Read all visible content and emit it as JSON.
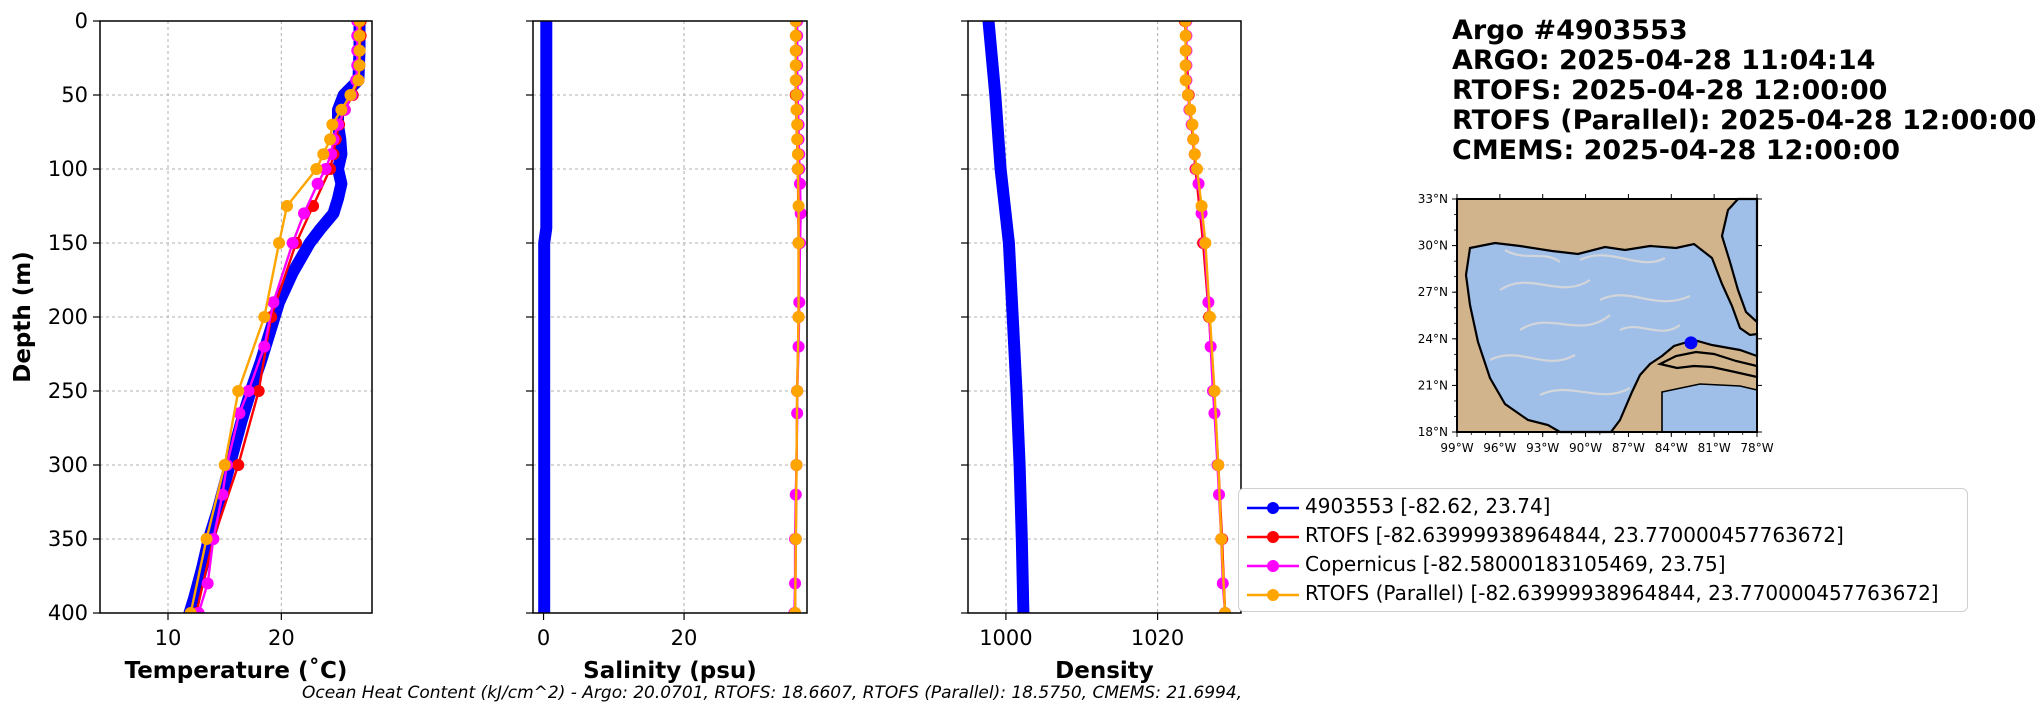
{
  "title": {
    "lines": [
      "Argo #4903553",
      "ARGO:  2025-04-28 11:04:14",
      "RTOFS: 2025-04-28 12:00:00",
      "RTOFS (Parallel): 2025-04-28 12:00:00",
      "CMEMS: 2025-04-28 12:00:00"
    ]
  },
  "ohc_text": "Ocean Heat Content (kJ/cm^2) - Argo: 20.0701,  RTOFS: 18.6607,  RTOFS (Parallel): 18.5750,  CMEMS: 21.6994,",
  "colors": {
    "argo": "#0000ff",
    "rtofs": "#ff0000",
    "copernicus": "#ff00ff",
    "rtofs_parallel": "#ffa500",
    "land": "#d2b48c",
    "ocean": "#9fbfe8",
    "grid": "#b0b0b0"
  },
  "legend": [
    {
      "key": "argo",
      "label": "4903553 [-82.62, 23.74]"
    },
    {
      "key": "rtofs",
      "label": "RTOFS [-82.63999938964844, 23.770000457763672]"
    },
    {
      "key": "copernicus",
      "label": "Copernicus [-82.58000183105469, 23.75]"
    },
    {
      "key": "rtofs_parallel",
      "label": "RTOFS (Parallel) [-82.63999938964844, 23.770000457763672]"
    }
  ],
  "chart_data": [
    {
      "type": "line",
      "xlabel": "Temperature (˚C)",
      "ylabel": "Depth (m)",
      "xlim": [
        4,
        28
      ],
      "ylim": [
        400,
        0
      ],
      "xticks": [
        10,
        20
      ],
      "yticks": [
        0,
        50,
        100,
        150,
        200,
        250,
        300,
        350,
        400
      ],
      "grid": true,
      "series": [
        {
          "name": "4903553 [-82.62, 23.74]",
          "key": "argo",
          "depth": [
            0,
            20,
            40,
            50,
            60,
            70,
            80,
            90,
            100,
            110,
            120,
            130,
            140,
            150,
            170,
            190,
            210,
            230,
            250,
            270,
            290,
            310,
            330,
            350,
            370,
            390,
            400
          ],
          "values": [
            26.9,
            26.9,
            26.8,
            25.5,
            25.0,
            25.0,
            25.2,
            25.3,
            25.0,
            25.3,
            25.0,
            24.6,
            23.5,
            22.5,
            21.0,
            19.8,
            19.0,
            18.2,
            17.3,
            16.5,
            15.8,
            15.1,
            14.4,
            13.6,
            13.0,
            12.3,
            11.9
          ]
        },
        {
          "name": "RTOFS [-82.63999938964844, 23.770000457763672]",
          "key": "rtofs",
          "depth": [
            0,
            10,
            20,
            30,
            40,
            50,
            60,
            70,
            80,
            90,
            100,
            125,
            150,
            200,
            250,
            300,
            350,
            400
          ],
          "values": [
            27.0,
            27.0,
            26.9,
            26.9,
            26.8,
            26.3,
            25.6,
            25.1,
            24.8,
            24.6,
            24.3,
            22.8,
            21.3,
            19.1,
            18.0,
            16.2,
            14.0,
            12.5
          ]
        },
        {
          "name": "Copernicus [-82.58000183105469, 23.75]",
          "key": "copernicus",
          "depth": [
            0,
            10,
            20,
            30,
            40,
            50,
            60,
            70,
            80,
            90,
            100,
            110,
            130,
            150,
            190,
            220,
            250,
            265,
            300,
            320,
            350,
            380,
            400
          ],
          "values": [
            26.7,
            26.7,
            26.7,
            26.7,
            26.6,
            26.2,
            25.6,
            25.0,
            24.6,
            24.4,
            23.9,
            23.2,
            22.0,
            21.0,
            19.3,
            18.5,
            17.1,
            16.3,
            15.2,
            14.8,
            14.0,
            13.5,
            12.7
          ]
        },
        {
          "name": "RTOFS (Parallel) [-82.63999938964844, 23.770000457763672]",
          "key": "rtofs_parallel",
          "depth": [
            0,
            10,
            20,
            30,
            40,
            50,
            60,
            70,
            80,
            90,
            100,
            125,
            150,
            200,
            250,
            300,
            350,
            400
          ],
          "values": [
            26.9,
            26.9,
            26.9,
            26.9,
            26.8,
            26.1,
            25.3,
            24.5,
            24.3,
            23.7,
            23.1,
            20.5,
            19.8,
            18.5,
            16.2,
            15.0,
            13.4,
            12.0
          ]
        }
      ]
    },
    {
      "type": "line",
      "xlabel": "Salinity (psu)",
      "ylabel": "",
      "xlim": [
        -1.5,
        37.5
      ],
      "ylim": [
        400,
        0
      ],
      "xticks": [
        0,
        20
      ],
      "yticks": [
        0,
        50,
        100,
        150,
        200,
        250,
        300,
        350,
        400
      ],
      "grid": true,
      "series": [
        {
          "name": "4903553 [-82.62, 23.74]",
          "key": "argo",
          "depth": [
            0,
            50,
            100,
            140,
            150,
            200,
            250,
            300,
            350,
            400
          ],
          "values": [
            0.4,
            0.4,
            0.4,
            0.4,
            0.1,
            0.1,
            0.1,
            0.1,
            0.1,
            0.1
          ]
        },
        {
          "name": "RTOFS [-82.63999938964844, 23.770000457763672]",
          "key": "rtofs",
          "depth": [
            0,
            50,
            100,
            150,
            200,
            250,
            300,
            350,
            400
          ],
          "values": [
            35.9,
            35.9,
            36.2,
            36.3,
            36.3,
            36.1,
            36.0,
            35.9,
            35.8
          ]
        },
        {
          "name": "Copernicus [-82.58000183105469, 23.75]",
          "key": "copernicus",
          "depth": [
            0,
            10,
            20,
            30,
            40,
            50,
            60,
            70,
            80,
            90,
            100,
            110,
            130,
            150,
            190,
            220,
            250,
            265,
            300,
            320,
            350,
            380,
            400
          ],
          "values": [
            36.1,
            36.1,
            36.1,
            36.1,
            36.1,
            36.2,
            36.2,
            36.3,
            36.3,
            36.4,
            36.4,
            36.5,
            36.6,
            36.5,
            36.4,
            36.3,
            36.1,
            36.1,
            36.0,
            35.9,
            35.8,
            35.8,
            35.7
          ]
        },
        {
          "name": "RTOFS (Parallel) [-82.63999938964844, 23.770000457763672]",
          "key": "rtofs_parallel",
          "depth": [
            0,
            10,
            20,
            30,
            40,
            50,
            60,
            70,
            80,
            90,
            100,
            125,
            150,
            200,
            250,
            300,
            350,
            400
          ],
          "values": [
            35.9,
            35.9,
            35.9,
            35.9,
            35.9,
            36.0,
            36.0,
            36.1,
            36.1,
            36.2,
            36.2,
            36.3,
            36.3,
            36.3,
            36.1,
            36.0,
            35.9,
            35.8
          ]
        }
      ]
    },
    {
      "type": "line",
      "xlabel": "Density",
      "ylabel": "",
      "xlim": [
        995,
        1031
      ],
      "ylim": [
        400,
        0
      ],
      "xticks": [
        1000,
        1020
      ],
      "yticks": [
        0,
        50,
        100,
        150,
        200,
        250,
        300,
        350,
        400
      ],
      "grid": true,
      "series": [
        {
          "name": "4903553 [-82.62, 23.74]",
          "key": "argo",
          "depth": [
            0,
            50,
            100,
            150,
            200,
            250,
            300,
            350,
            400
          ],
          "values": [
            997.7,
            998.6,
            999.3,
            1000.4,
            1000.9,
            1001.4,
            1001.8,
            1002.1,
            1002.3
          ]
        },
        {
          "name": "RTOFS [-82.63999938964844, 23.770000457763672]",
          "key": "rtofs",
          "depth": [
            0,
            50,
            100,
            150,
            200,
            250,
            300,
            350,
            400
          ],
          "values": [
            1023.6,
            1024.1,
            1025.0,
            1026.0,
            1026.8,
            1027.4,
            1028.0,
            1028.5,
            1028.9
          ]
        },
        {
          "name": "Copernicus [-82.58000183105469, 23.75]",
          "key": "copernicus",
          "depth": [
            0,
            10,
            20,
            30,
            40,
            50,
            60,
            70,
            80,
            90,
            100,
            110,
            130,
            150,
            190,
            220,
            250,
            265,
            300,
            320,
            350,
            380,
            400
          ],
          "values": [
            1023.8,
            1023.8,
            1023.8,
            1023.8,
            1023.8,
            1024.0,
            1024.2,
            1024.5,
            1024.7,
            1024.9,
            1025.1,
            1025.4,
            1025.8,
            1026.2,
            1026.7,
            1027.0,
            1027.3,
            1027.5,
            1027.9,
            1028.1,
            1028.4,
            1028.6,
            1028.9
          ]
        },
        {
          "name": "RTOFS (Parallel) [-82.63999938964844, 23.770000457763672]",
          "key": "rtofs_parallel",
          "depth": [
            0,
            10,
            20,
            30,
            40,
            50,
            60,
            70,
            80,
            90,
            100,
            125,
            150,
            200,
            250,
            300,
            350,
            400
          ],
          "values": [
            1023.7,
            1023.7,
            1023.7,
            1023.7,
            1023.7,
            1024.0,
            1024.3,
            1024.6,
            1024.7,
            1024.9,
            1025.2,
            1025.8,
            1026.3,
            1026.9,
            1027.5,
            1028.0,
            1028.4,
            1028.9
          ]
        }
      ]
    }
  ],
  "map": {
    "lon_labels": [
      "99°W",
      "96°W",
      "93°W",
      "90°W",
      "87°W",
      "84°W",
      "81°W",
      "78°W"
    ],
    "lat_labels": [
      "33°N",
      "30°N",
      "27°N",
      "24°N",
      "21°N",
      "18°N"
    ],
    "lon_range": [
      -99,
      -78
    ],
    "lat_range": [
      18,
      33
    ],
    "argo_point": {
      "lon": -82.62,
      "lat": 23.74
    }
  }
}
